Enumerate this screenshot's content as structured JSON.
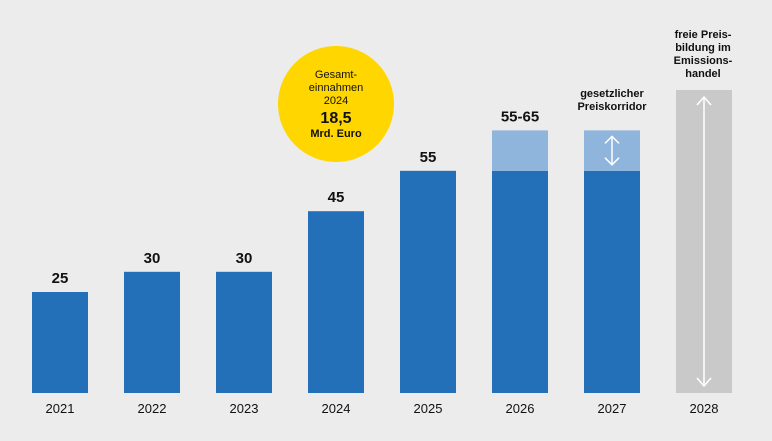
{
  "chart_data": {
    "type": "bar",
    "categories": [
      "2021",
      "2022",
      "2023",
      "2024",
      "2025",
      "2026",
      "2027",
      "2028"
    ],
    "values": [
      25,
      30,
      30,
      45,
      55,
      55,
      55,
      null
    ],
    "corridor": {
      "2026": [
        55,
        65
      ],
      "2027": [
        55,
        65
      ]
    },
    "value_labels": [
      "25",
      "30",
      "30",
      "45",
      "55",
      "55-65",
      "",
      ""
    ],
    "ylim": [
      0,
      75
    ],
    "colors": {
      "bar": "#2370b8",
      "corridor": "#8fb5dc",
      "free_market": "#c9c9c9",
      "badge": "#ffd600",
      "background": "#ececec"
    },
    "annotations": {
      "corridor_label": [
        "gesetzlicher",
        "Preiskorridor"
      ],
      "free_market_label": [
        "freie Preis-",
        "bildung im",
        "Emissions-",
        "handel"
      ],
      "badge_lines": [
        "Gesamt-",
        "einnahmen",
        "2024"
      ],
      "badge_value": "18,5",
      "badge_unit": "Mrd. Euro"
    }
  }
}
